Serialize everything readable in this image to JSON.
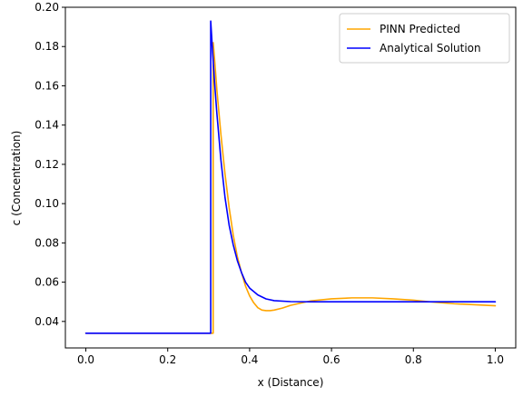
{
  "chart_data": {
    "type": "line",
    "title": "",
    "xlabel": "x (Distance)",
    "ylabel": "c (Concentration)",
    "xlim": [
      -0.05,
      1.05
    ],
    "ylim": [
      0.0265,
      0.2
    ],
    "xticks": [
      0.0,
      0.2,
      0.4,
      0.6,
      0.8,
      1.0
    ],
    "xtick_labels": [
      "0.0",
      "0.2",
      "0.4",
      "0.6",
      "0.8",
      "1.0"
    ],
    "yticks": [
      0.04,
      0.06,
      0.08,
      0.1,
      0.12,
      0.14,
      0.16,
      0.18,
      0.2
    ],
    "ytick_labels": [
      "0.04",
      "0.06",
      "0.08",
      "0.10",
      "0.12",
      "0.14",
      "0.16",
      "0.18",
      "0.20"
    ],
    "grid": false,
    "legend_position": "top-right",
    "series": [
      {
        "name": "PINN Predicted",
        "color": "#ffa500",
        "x": [
          0.0,
          0.3,
          0.311,
          0.311,
          0.315,
          0.32,
          0.33,
          0.34,
          0.35,
          0.36,
          0.37,
          0.38,
          0.39,
          0.4,
          0.41,
          0.42,
          0.43,
          0.44,
          0.45,
          0.46,
          0.48,
          0.5,
          0.55,
          0.6,
          0.65,
          0.7,
          0.75,
          0.8,
          0.85,
          0.9,
          0.95,
          1.0
        ],
        "y": [
          0.034,
          0.034,
          0.034,
          0.182,
          0.172,
          0.158,
          0.135,
          0.115,
          0.098,
          0.084,
          0.073,
          0.065,
          0.058,
          0.053,
          0.0495,
          0.047,
          0.0458,
          0.0455,
          0.0455,
          0.0458,
          0.0468,
          0.0482,
          0.0505,
          0.0515,
          0.052,
          0.052,
          0.0515,
          0.0508,
          0.0498,
          0.049,
          0.0485,
          0.048
        ]
      },
      {
        "name": "Analytical Solution",
        "color": "#0000ff",
        "x": [
          0.0,
          0.3,
          0.305,
          0.305,
          0.31,
          0.315,
          0.32,
          0.33,
          0.34,
          0.35,
          0.36,
          0.37,
          0.38,
          0.39,
          0.4,
          0.42,
          0.44,
          0.46,
          0.5,
          0.55,
          0.6,
          0.7,
          0.8,
          0.9,
          1.0
        ],
        "y": [
          0.034,
          0.034,
          0.034,
          0.193,
          0.176,
          0.16,
          0.146,
          0.122,
          0.103,
          0.089,
          0.079,
          0.071,
          0.065,
          0.06,
          0.057,
          0.0535,
          0.0515,
          0.0506,
          0.0501,
          0.05,
          0.05,
          0.05,
          0.05,
          0.05,
          0.05
        ]
      }
    ]
  }
}
